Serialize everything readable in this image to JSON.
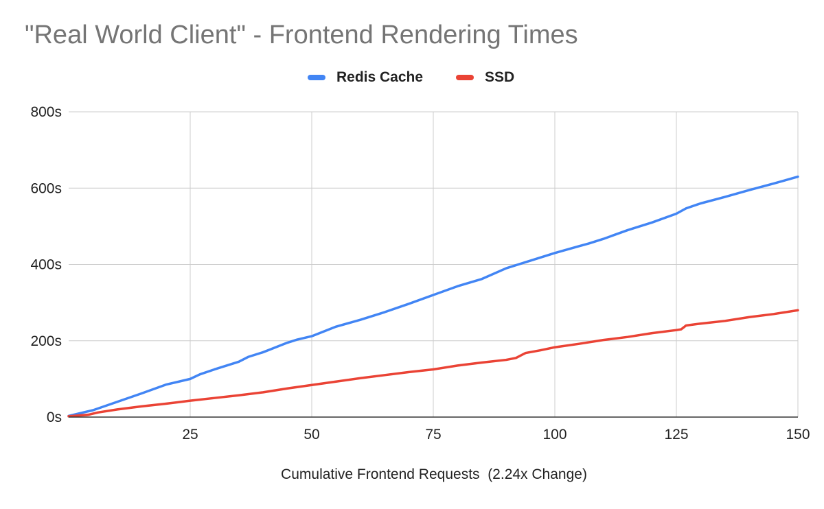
{
  "chart_data": {
    "type": "line",
    "title": "\"Real World Client\" - Frontend Rendering Times",
    "xlabel": "Cumulative Frontend Requests  (2.24x Change)",
    "ylabel": "",
    "xlim": [
      0,
      150
    ],
    "ylim": [
      0,
      800
    ],
    "x_ticks": [
      25,
      50,
      75,
      100,
      125,
      150
    ],
    "y_ticks": [
      0,
      200,
      400,
      600,
      800
    ],
    "y_tick_labels": [
      "0s",
      "200s",
      "400s",
      "600s",
      "800s"
    ],
    "grid": true,
    "legend_position": "top",
    "series": [
      {
        "name": "Redis Cache",
        "color": "#4285f4",
        "points": [
          [
            0,
            3
          ],
          [
            5,
            18
          ],
          [
            10,
            40
          ],
          [
            15,
            62
          ],
          [
            20,
            85
          ],
          [
            25,
            100
          ],
          [
            27,
            112
          ],
          [
            30,
            125
          ],
          [
            35,
            145
          ],
          [
            37,
            158
          ],
          [
            40,
            170
          ],
          [
            45,
            195
          ],
          [
            47,
            203
          ],
          [
            50,
            212
          ],
          [
            55,
            237
          ],
          [
            60,
            255
          ],
          [
            65,
            275
          ],
          [
            70,
            297
          ],
          [
            75,
            320
          ],
          [
            80,
            343
          ],
          [
            85,
            362
          ],
          [
            90,
            390
          ],
          [
            95,
            410
          ],
          [
            100,
            430
          ],
          [
            105,
            448
          ],
          [
            107,
            455
          ],
          [
            110,
            467
          ],
          [
            115,
            490
          ],
          [
            120,
            510
          ],
          [
            125,
            533
          ],
          [
            127,
            547
          ],
          [
            130,
            560
          ],
          [
            135,
            577
          ],
          [
            140,
            595
          ],
          [
            145,
            612
          ],
          [
            150,
            630
          ]
        ]
      },
      {
        "name": "SSD",
        "color": "#ea4335",
        "points": [
          [
            0,
            2
          ],
          [
            4,
            6
          ],
          [
            6,
            12
          ],
          [
            10,
            20
          ],
          [
            15,
            28
          ],
          [
            20,
            35
          ],
          [
            25,
            43
          ],
          [
            30,
            50
          ],
          [
            35,
            57
          ],
          [
            40,
            65
          ],
          [
            45,
            75
          ],
          [
            50,
            84
          ],
          [
            55,
            93
          ],
          [
            60,
            102
          ],
          [
            65,
            110
          ],
          [
            70,
            118
          ],
          [
            75,
            125
          ],
          [
            80,
            135
          ],
          [
            85,
            143
          ],
          [
            90,
            150
          ],
          [
            92,
            155
          ],
          [
            94,
            168
          ],
          [
            97,
            175
          ],
          [
            100,
            183
          ],
          [
            105,
            192
          ],
          [
            110,
            202
          ],
          [
            115,
            210
          ],
          [
            120,
            220
          ],
          [
            125,
            228
          ],
          [
            126,
            230
          ],
          [
            127,
            240
          ],
          [
            130,
            245
          ],
          [
            135,
            252
          ],
          [
            140,
            262
          ],
          [
            145,
            270
          ],
          [
            150,
            280
          ]
        ]
      }
    ]
  }
}
